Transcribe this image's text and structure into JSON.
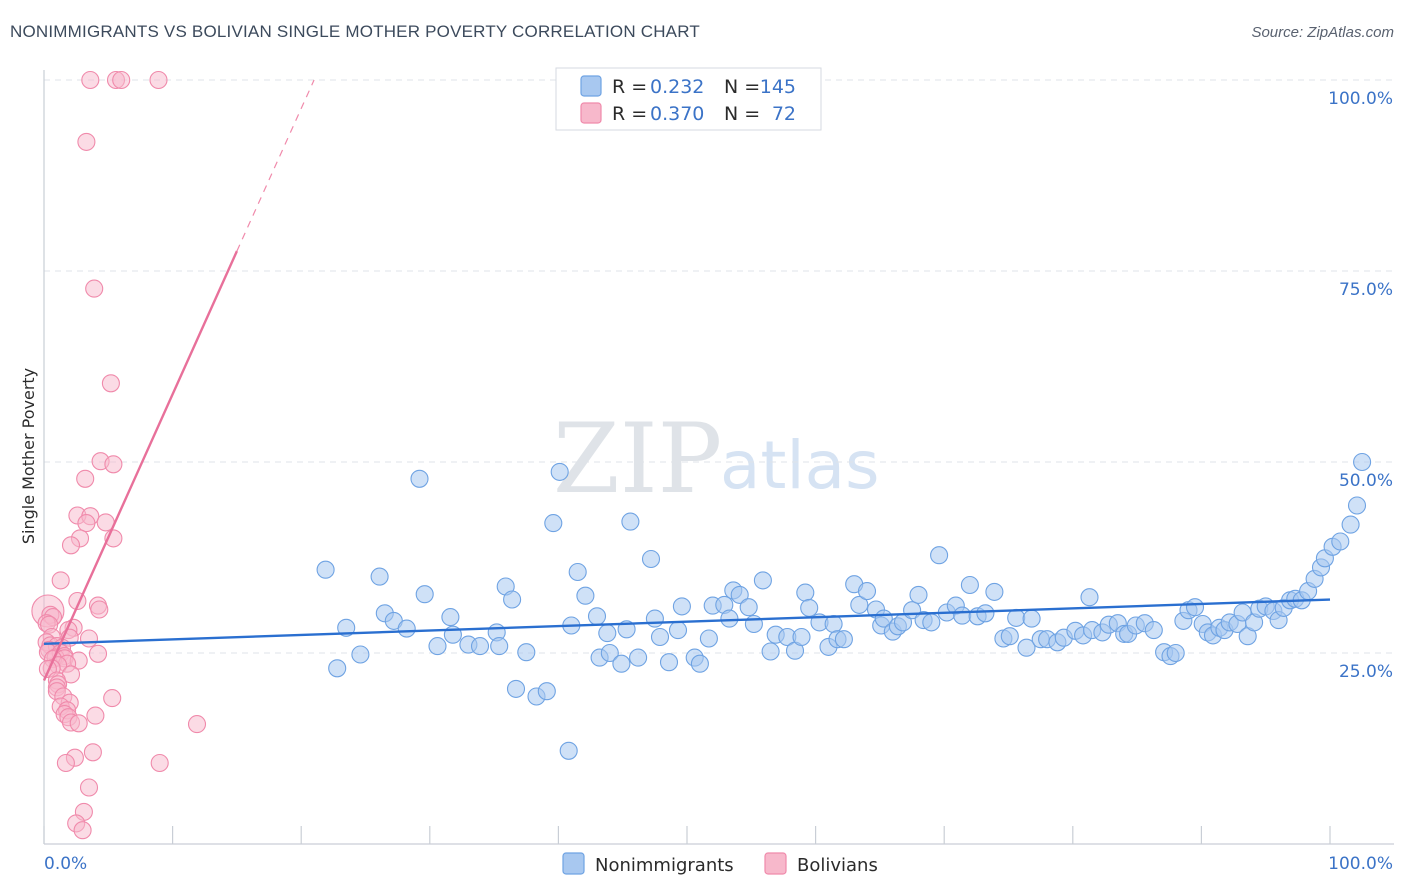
{
  "header": {
    "title": "NONIMMIGRANTS VS BOLIVIAN SINGLE MOTHER POVERTY CORRELATION CHART",
    "source": "Source: ZipAtlas.com"
  },
  "watermark": {
    "zip": "ZIP",
    "atlas": "atlas"
  },
  "legend": {
    "rows": [
      {
        "r_label": "R =",
        "r_value": "0.232",
        "n_label": "N =",
        "n_value": "145",
        "color": "#a8c8f0"
      },
      {
        "r_label": "R =",
        "r_value": "0.370",
        "n_label": "N =",
        "n_value": "72",
        "color": "#f7b8cb"
      }
    ]
  },
  "bottom_legend": {
    "items": [
      {
        "label": "Nonimmigrants",
        "color": "#a8c8f0"
      },
      {
        "label": "Bolivians",
        "color": "#f7b8cb"
      }
    ]
  },
  "chart_data": {
    "type": "scatter",
    "title": "NONIMMIGRANTS VS BOLIVIAN SINGLE MOTHER POVERTY CORRELATION CHART",
    "xlabel": "",
    "ylabel": "Single Mother Poverty",
    "xlim": [
      0,
      100
    ],
    "ylim": [
      0,
      100
    ],
    "x_tick_labels": [
      "0.0%",
      "100.0%"
    ],
    "y_ticks": [
      25,
      50,
      75,
      100
    ],
    "y_tick_labels": [
      "25.0%",
      "50.0%",
      "75.0%",
      "100.0%"
    ],
    "grid": "horizontal dashed",
    "legend_position": "top-center",
    "colors": {
      "nonimmigrants": "#6fa3e3",
      "bolivians": "#f08aab",
      "blue_line": "#2a6fd0",
      "pink_line": "#e8709a"
    },
    "series": [
      {
        "name": "Nonimmigrants",
        "trend": {
          "x0": 0,
          "y0": 26.2,
          "x1": 100,
          "y1": 32.0
        },
        "points": [
          [
            21.9,
            35.9
          ],
          [
            22.8,
            23.0
          ],
          [
            23.5,
            28.3
          ],
          [
            24.6,
            24.8
          ],
          [
            26.1,
            35.0
          ],
          [
            26.5,
            30.2
          ],
          [
            27.2,
            29.2
          ],
          [
            29.2,
            47.8
          ],
          [
            28.2,
            28.2
          ],
          [
            29.6,
            32.7
          ],
          [
            30.6,
            25.9
          ],
          [
            31.8,
            27.4
          ],
          [
            31.6,
            29.7
          ],
          [
            33.0,
            26.1
          ],
          [
            33.9,
            25.9
          ],
          [
            35.2,
            27.7
          ],
          [
            35.4,
            25.9
          ],
          [
            35.9,
            33.7
          ],
          [
            36.4,
            32.0
          ],
          [
            36.7,
            20.3
          ],
          [
            37.5,
            25.1
          ],
          [
            38.3,
            19.3
          ],
          [
            39.1,
            20.0
          ],
          [
            39.6,
            42.0
          ],
          [
            40.8,
            12.2
          ],
          [
            40.1,
            48.7
          ],
          [
            41.0,
            28.6
          ],
          [
            41.5,
            35.6
          ],
          [
            42.1,
            32.5
          ],
          [
            43.0,
            29.8
          ],
          [
            43.2,
            24.4
          ],
          [
            43.8,
            27.6
          ],
          [
            44.0,
            25.0
          ],
          [
            44.9,
            23.6
          ],
          [
            45.3,
            28.1
          ],
          [
            45.6,
            42.2
          ],
          [
            46.2,
            24.4
          ],
          [
            47.2,
            37.3
          ],
          [
            47.5,
            29.5
          ],
          [
            47.9,
            27.1
          ],
          [
            48.6,
            23.8
          ],
          [
            49.3,
            28.0
          ],
          [
            49.6,
            31.1
          ],
          [
            50.6,
            24.4
          ],
          [
            51.0,
            23.6
          ],
          [
            51.7,
            26.9
          ],
          [
            52.0,
            31.2
          ],
          [
            52.9,
            31.3
          ],
          [
            53.3,
            29.5
          ],
          [
            53.6,
            33.2
          ],
          [
            54.1,
            32.6
          ],
          [
            54.8,
            31.0
          ],
          [
            55.2,
            28.8
          ],
          [
            55.9,
            34.5
          ],
          [
            56.5,
            25.2
          ],
          [
            56.9,
            27.4
          ],
          [
            57.8,
            27.1
          ],
          [
            58.4,
            25.3
          ],
          [
            58.9,
            27.1
          ],
          [
            59.2,
            32.9
          ],
          [
            59.5,
            30.9
          ],
          [
            60.3,
            29.0
          ],
          [
            61.0,
            25.8
          ],
          [
            61.4,
            28.8
          ],
          [
            61.7,
            26.8
          ],
          [
            62.2,
            26.8
          ],
          [
            63.0,
            34.0
          ],
          [
            63.4,
            31.3
          ],
          [
            64.0,
            33.1
          ],
          [
            64.7,
            30.7
          ],
          [
            65.1,
            28.6
          ],
          [
            65.3,
            29.5
          ],
          [
            66.0,
            27.8
          ],
          [
            66.4,
            28.5
          ],
          [
            66.8,
            29.0
          ],
          [
            67.5,
            30.6
          ],
          [
            68.4,
            29.3
          ],
          [
            68.0,
            32.6
          ],
          [
            69.0,
            29.0
          ],
          [
            69.6,
            37.8
          ],
          [
            70.2,
            30.3
          ],
          [
            70.9,
            31.2
          ],
          [
            71.4,
            29.9
          ],
          [
            72.0,
            33.9
          ],
          [
            72.6,
            29.8
          ],
          [
            73.2,
            30.2
          ],
          [
            73.9,
            33.0
          ],
          [
            74.6,
            26.9
          ],
          [
            75.1,
            27.2
          ],
          [
            75.6,
            29.6
          ],
          [
            76.4,
            25.7
          ],
          [
            76.8,
            29.5
          ],
          [
            77.5,
            26.8
          ],
          [
            78.0,
            26.8
          ],
          [
            78.8,
            26.4
          ],
          [
            79.3,
            27.0
          ],
          [
            80.2,
            27.9
          ],
          [
            80.8,
            27.3
          ],
          [
            81.3,
            32.3
          ],
          [
            81.5,
            28.0
          ],
          [
            82.3,
            27.7
          ],
          [
            82.8,
            28.7
          ],
          [
            83.5,
            28.9
          ],
          [
            84.0,
            27.5
          ],
          [
            84.3,
            27.5
          ],
          [
            84.9,
            28.6
          ],
          [
            85.6,
            28.9
          ],
          [
            86.3,
            28.0
          ],
          [
            87.1,
            25.1
          ],
          [
            87.6,
            24.6
          ],
          [
            88.0,
            25.0
          ],
          [
            88.6,
            29.2
          ],
          [
            89.0,
            30.6
          ],
          [
            89.5,
            31.0
          ],
          [
            90.1,
            28.8
          ],
          [
            90.5,
            27.7
          ],
          [
            90.9,
            27.3
          ],
          [
            91.4,
            28.3
          ],
          [
            91.8,
            28.0
          ],
          [
            92.2,
            29.0
          ],
          [
            92.8,
            28.8
          ],
          [
            93.2,
            30.3
          ],
          [
            93.6,
            27.2
          ],
          [
            94.1,
            29.0
          ],
          [
            94.5,
            30.8
          ],
          [
            95.0,
            31.1
          ],
          [
            95.6,
            30.5
          ],
          [
            96.0,
            29.3
          ],
          [
            96.4,
            30.9
          ],
          [
            96.9,
            31.9
          ],
          [
            97.3,
            32.1
          ],
          [
            97.8,
            31.9
          ],
          [
            98.3,
            33.1
          ],
          [
            98.8,
            34.7
          ],
          [
            99.3,
            36.2
          ],
          [
            99.6,
            37.4
          ],
          [
            100.2,
            38.9
          ],
          [
            100.8,
            39.6
          ],
          [
            101.6,
            41.8
          ],
          [
            102.1,
            44.3
          ],
          [
            102.5,
            50.0
          ]
        ]
      },
      {
        "name": "Bolivians",
        "trend": {
          "x0": 0,
          "y0": 21.4,
          "x1": 15.0,
          "y1": 77.6,
          "dashed_to": {
            "x": 21.0,
            "y": 100.0
          }
        },
        "points": [
          [
            3.6,
            100.0
          ],
          [
            5.6,
            100.0
          ],
          [
            6.0,
            100.0
          ],
          [
            8.9,
            100.0
          ],
          [
            3.3,
            91.9
          ],
          [
            3.9,
            72.7
          ],
          [
            5.2,
            60.3
          ],
          [
            4.4,
            50.1
          ],
          [
            5.4,
            49.7
          ],
          [
            3.2,
            47.8
          ],
          [
            2.6,
            43.0
          ],
          [
            3.6,
            42.9
          ],
          [
            4.8,
            42.1
          ],
          [
            3.3,
            42.0
          ],
          [
            2.8,
            40.0
          ],
          [
            5.4,
            40.0
          ],
          [
            2.1,
            39.1
          ],
          [
            1.3,
            34.5
          ],
          [
            2.6,
            31.8
          ],
          [
            4.2,
            31.2
          ],
          [
            4.3,
            30.7
          ],
          [
            0.3,
            30.5
          ],
          [
            0.5,
            30.0
          ],
          [
            0.7,
            29.7
          ],
          [
            0.2,
            28.9
          ],
          [
            0.4,
            28.7
          ],
          [
            2.3,
            28.3
          ],
          [
            1.9,
            28.0
          ],
          [
            0.6,
            27.1
          ],
          [
            2.0,
            27.0
          ],
          [
            3.5,
            26.9
          ],
          [
            0.2,
            26.4
          ],
          [
            0.5,
            26.0
          ],
          [
            1.0,
            25.9
          ],
          [
            1.4,
            25.7
          ],
          [
            0.4,
            25.4
          ],
          [
            0.3,
            25.1
          ],
          [
            1.3,
            25.0
          ],
          [
            4.2,
            24.9
          ],
          [
            1.6,
            24.6
          ],
          [
            0.9,
            24.4
          ],
          [
            1.6,
            24.3
          ],
          [
            0.7,
            24.2
          ],
          [
            2.7,
            24.0
          ],
          [
            1.8,
            23.6
          ],
          [
            1.1,
            23.4
          ],
          [
            0.6,
            23.0
          ],
          [
            0.3,
            22.9
          ],
          [
            2.1,
            22.2
          ],
          [
            1.0,
            21.4
          ],
          [
            1.1,
            20.9
          ],
          [
            1.0,
            20.5
          ],
          [
            1.0,
            20.0
          ],
          [
            1.5,
            19.3
          ],
          [
            5.3,
            19.1
          ],
          [
            2.0,
            18.5
          ],
          [
            1.3,
            18.0
          ],
          [
            1.8,
            17.5
          ],
          [
            1.6,
            17.0
          ],
          [
            1.9,
            16.6
          ],
          [
            4.0,
            16.8
          ],
          [
            2.1,
            15.9
          ],
          [
            2.7,
            15.8
          ],
          [
            11.9,
            15.7
          ],
          [
            3.8,
            12.0
          ],
          [
            2.4,
            11.3
          ],
          [
            1.7,
            10.6
          ],
          [
            9.0,
            10.6
          ],
          [
            3.5,
            7.4
          ],
          [
            3.1,
            4.2
          ],
          [
            2.5,
            2.7
          ],
          [
            3.0,
            1.8
          ]
        ]
      }
    ]
  }
}
